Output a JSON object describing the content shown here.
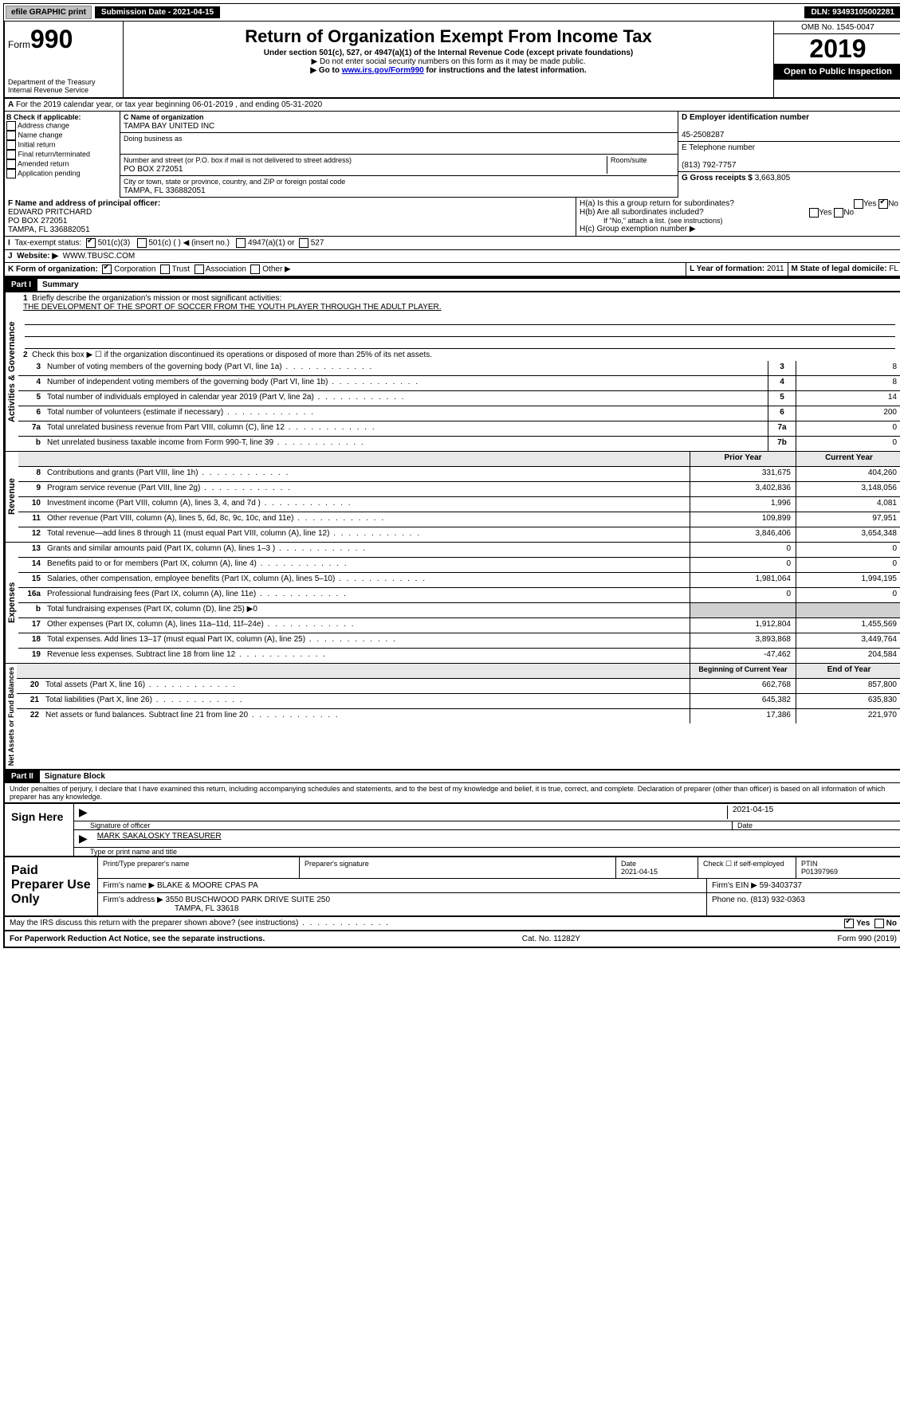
{
  "topbar": {
    "efile": "efile GRAPHIC print",
    "submission_label": "Submission Date - 2021-04-15",
    "dln": "DLN: 93493105002281"
  },
  "header": {
    "form_label": "Form",
    "form_number": "990",
    "dept": "Department of the Treasury",
    "irs": "Internal Revenue Service",
    "title": "Return of Organization Exempt From Income Tax",
    "sub1": "Under section 501(c), 527, or 4947(a)(1) of the Internal Revenue Code (except private foundations)",
    "sub2": "▶ Do not enter social security numbers on this form as it may be made public.",
    "sub3_pre": "▶ Go to ",
    "sub3_link": "www.irs.gov/Form990",
    "sub3_post": " for instructions and the latest information.",
    "omb": "OMB No. 1545-0047",
    "year": "2019",
    "open": "Open to Public Inspection"
  },
  "periodA": "For the 2019 calendar year, or tax year beginning 06-01-2019   , and ending 05-31-2020",
  "colB": {
    "title": "B Check if applicable:",
    "items": [
      "Address change",
      "Name change",
      "Initial return",
      "Final return/terminated",
      "Amended return",
      "Application pending"
    ]
  },
  "colC": {
    "name_label": "C Name of organization",
    "name": "TAMPA BAY UNITED INC",
    "dba_label": "Doing business as",
    "addr_label": "Number and street (or P.O. box if mail is not delivered to street address)",
    "room_label": "Room/suite",
    "addr": "PO BOX 272051",
    "city_label": "City or town, state or province, country, and ZIP or foreign postal code",
    "city": "TAMPA, FL  336882051"
  },
  "colD": {
    "ein_label": "D Employer identification number",
    "ein": "45-2508287",
    "phone_label": "E Telephone number",
    "phone": "(813) 792-7757",
    "gross_label": "G Gross receipts $",
    "gross": "3,663,805"
  },
  "F": {
    "label": "F  Name and address of principal officer:",
    "name": "EDWARD PRITCHARD",
    "addr1": "PO BOX 272051",
    "addr2": "TAMPA, FL  336882051"
  },
  "H": {
    "a": "H(a)  Is this a group return for subordinates?",
    "b": "H(b)  Are all subordinates included?",
    "b_note": "If \"No,\" attach a list. (see instructions)",
    "c": "H(c)  Group exemption number ▶"
  },
  "I": {
    "label": "Tax-exempt status:",
    "opt1": "501(c)(3)",
    "opt2": "501(c) (   ) ◀ (insert no.)",
    "opt3": "4947(a)(1) or",
    "opt4": "527"
  },
  "J": {
    "label": "Website: ▶",
    "value": "WWW.TBUSC.COM"
  },
  "K": {
    "label": "K Form of organization:",
    "corp": "Corporation",
    "trust": "Trust",
    "assoc": "Association",
    "other": "Other ▶"
  },
  "L": {
    "label": "L Year of formation:",
    "value": "2011"
  },
  "M": {
    "label": "M State of legal domicile:",
    "value": "FL"
  },
  "partI": {
    "header": "Part I",
    "title": "Summary",
    "q1": "Briefly describe the organization's mission or most significant activities:",
    "mission": "THE DEVELOPMENT OF THE SPORT OF SOCCER FROM THE YOUTH PLAYER THROUGH THE ADULT PLAYER.",
    "q2": "Check this box ▶ ☐  if the organization discontinued its operations or disposed of more than 25% of its net assets.",
    "rows_gov": [
      {
        "n": "3",
        "d": "Number of voting members of the governing body (Part VI, line 1a)",
        "box": "3",
        "v": "8"
      },
      {
        "n": "4",
        "d": "Number of independent voting members of the governing body (Part VI, line 1b)",
        "box": "4",
        "v": "8"
      },
      {
        "n": "5",
        "d": "Total number of individuals employed in calendar year 2019 (Part V, line 2a)",
        "box": "5",
        "v": "14"
      },
      {
        "n": "6",
        "d": "Total number of volunteers (estimate if necessary)",
        "box": "6",
        "v": "200"
      },
      {
        "n": "7a",
        "d": "Total unrelated business revenue from Part VIII, column (C), line 12",
        "box": "7a",
        "v": "0"
      },
      {
        "n": "b",
        "d": "Net unrelated business taxable income from Form 990-T, line 39",
        "box": "7b",
        "v": "0"
      }
    ],
    "col_prior": "Prior Year",
    "col_current": "Current Year",
    "rows_rev": [
      {
        "n": "8",
        "d": "Contributions and grants (Part VIII, line 1h)",
        "p": "331,675",
        "c": "404,260"
      },
      {
        "n": "9",
        "d": "Program service revenue (Part VIII, line 2g)",
        "p": "3,402,836",
        "c": "3,148,056"
      },
      {
        "n": "10",
        "d": "Investment income (Part VIII, column (A), lines 3, 4, and 7d )",
        "p": "1,996",
        "c": "4,081"
      },
      {
        "n": "11",
        "d": "Other revenue (Part VIII, column (A), lines 5, 6d, 8c, 9c, 10c, and 11e)",
        "p": "109,899",
        "c": "97,951"
      },
      {
        "n": "12",
        "d": "Total revenue—add lines 8 through 11 (must equal Part VIII, column (A), line 12)",
        "p": "3,846,406",
        "c": "3,654,348"
      }
    ],
    "rows_exp": [
      {
        "n": "13",
        "d": "Grants and similar amounts paid (Part IX, column (A), lines 1–3 )",
        "p": "0",
        "c": "0"
      },
      {
        "n": "14",
        "d": "Benefits paid to or for members (Part IX, column (A), line 4)",
        "p": "0",
        "c": "0"
      },
      {
        "n": "15",
        "d": "Salaries, other compensation, employee benefits (Part IX, column (A), lines 5–10)",
        "p": "1,981,064",
        "c": "1,994,195"
      },
      {
        "n": "16a",
        "d": "Professional fundraising fees (Part IX, column (A), line 11e)",
        "p": "0",
        "c": "0"
      },
      {
        "n": "b",
        "d": "Total fundraising expenses (Part IX, column (D), line 25) ▶0",
        "p": "",
        "c": "",
        "shade": true
      },
      {
        "n": "17",
        "d": "Other expenses (Part IX, column (A), lines 11a–11d, 11f–24e)",
        "p": "1,912,804",
        "c": "1,455,569"
      },
      {
        "n": "18",
        "d": "Total expenses. Add lines 13–17 (must equal Part IX, column (A), line 25)",
        "p": "3,893,868",
        "c": "3,449,764"
      },
      {
        "n": "19",
        "d": "Revenue less expenses. Subtract line 18 from line 12",
        "p": "-47,462",
        "c": "204,584"
      }
    ],
    "col_begin": "Beginning of Current Year",
    "col_end": "End of Year",
    "rows_bal": [
      {
        "n": "20",
        "d": "Total assets (Part X, line 16)",
        "p": "662,768",
        "c": "857,800"
      },
      {
        "n": "21",
        "d": "Total liabilities (Part X, line 26)",
        "p": "645,382",
        "c": "635,830"
      },
      {
        "n": "22",
        "d": "Net assets or fund balances. Subtract line 21 from line 20",
        "p": "17,386",
        "c": "221,970"
      }
    ],
    "labels": {
      "gov": "Activities & Governance",
      "rev": "Revenue",
      "exp": "Expenses",
      "bal": "Net Assets or Fund Balances"
    }
  },
  "partII": {
    "header": "Part II",
    "title": "Signature Block",
    "perjury": "Under penalties of perjury, I declare that I have examined this return, including accompanying schedules and statements, and to the best of my knowledge and belief, it is true, correct, and complete. Declaration of preparer (other than officer) is based on all information of which preparer has any knowledge.",
    "sign_here": "Sign Here",
    "sig_officer": "Signature of officer",
    "sig_date": "2021-04-15",
    "date_label": "Date",
    "name_title": "MARK SAKALOSKY TREASURER",
    "type_name": "Type or print name and title"
  },
  "paid": {
    "label": "Paid Preparer Use Only",
    "h_name": "Print/Type preparer's name",
    "h_sig": "Preparer's signature",
    "h_date": "Date",
    "date": "2021-04-15",
    "check": "Check ☐ if self-employed",
    "ptin_label": "PTIN",
    "ptin": "P01397969",
    "firm_name_label": "Firm's name    ▶",
    "firm_name": "BLAKE & MOORE CPAS PA",
    "firm_ein_label": "Firm's EIN ▶",
    "firm_ein": "59-3403737",
    "firm_addr_label": "Firm's address ▶",
    "firm_addr1": "3550 BUSCHWOOD PARK DRIVE SUITE 250",
    "firm_addr2": "TAMPA, FL  33618",
    "phone_label": "Phone no.",
    "phone": "(813) 932-0363"
  },
  "discuss": {
    "q": "May the IRS discuss this return with the preparer shown above? (see instructions)",
    "yes": "Yes",
    "no": "No"
  },
  "footer": {
    "pra": "For Paperwork Reduction Act Notice, see the separate instructions.",
    "cat": "Cat. No. 11282Y",
    "form": "Form 990 (2019)"
  }
}
